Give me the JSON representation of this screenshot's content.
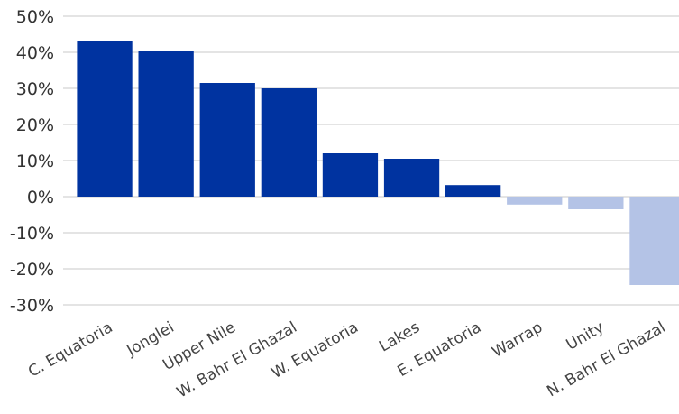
{
  "chart_data": {
    "type": "bar",
    "title": "",
    "xlabel": "",
    "ylabel": "",
    "categories": [
      "C. Equatoria",
      "Jonglei",
      "Upper Nile",
      "W. Bahr El Ghazal",
      "W. Equatoria",
      "Lakes",
      "E. Equatoria",
      "Warrap",
      "Unity",
      "N. Bahr El Ghazal"
    ],
    "values": [
      43,
      40.5,
      31.5,
      30,
      12,
      10.5,
      3.2,
      -2.2,
      -3.5,
      -24.5
    ],
    "ylim": [
      -30,
      50
    ],
    "yticks": [
      "50%",
      "40%",
      "30%",
      "20%",
      "10%",
      "0%",
      "-10%",
      "-20%",
      "-30%"
    ],
    "grid": true,
    "colors": {
      "positive": "#0033a0",
      "negative": "#b4c3e6"
    }
  }
}
